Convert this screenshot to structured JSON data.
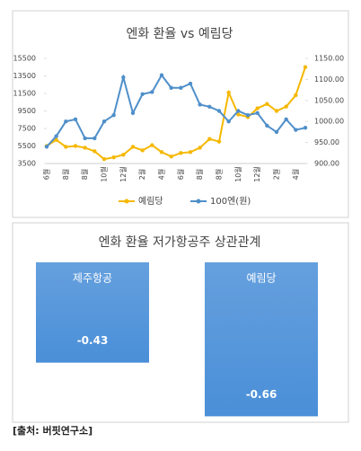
{
  "chart_data": [
    {
      "type": "line",
      "title": "엔화 환율 vs 예림당",
      "categories": [
        "6월",
        null,
        "8월",
        null,
        "8월",
        null,
        "10월",
        null,
        "12월",
        null,
        "2월",
        null,
        "4월",
        null,
        "6월",
        null,
        "8월",
        null,
        "8월",
        null,
        "10월",
        null,
        "12월",
        null,
        "2월",
        null,
        "4월",
        null
      ],
      "ylim": [
        3500,
        15500
      ],
      "yticks": [
        3500,
        5500,
        7500,
        9500,
        11500,
        13500,
        15500
      ],
      "y2lim": [
        900,
        1150
      ],
      "y2ticks": [
        {
          "value": 900,
          "label": "900.00"
        },
        {
          "value": 950,
          "label": "950.00"
        },
        {
          "value": 1000,
          "label": "1000.00"
        },
        {
          "value": 1050,
          "label": "1050.00"
        },
        {
          "value": 1100,
          "label": "1100.00"
        },
        {
          "value": 1150,
          "label": "1150.00"
        }
      ],
      "legend": "bottom",
      "series": [
        {
          "name": "예림당",
          "color": "#f5b800",
          "values": [
            5500,
            6200,
            5400,
            5500,
            5300,
            4900,
            4000,
            4200,
            4500,
            5400,
            5000,
            5600,
            4800,
            4300,
            4700,
            4800,
            5300,
            6300,
            6000,
            11600,
            9100,
            8800,
            9800,
            10300,
            9500,
            10000,
            11300,
            14500
          ]
        },
        {
          "name": "100엔(원)",
          "color": "#4f8fc9",
          "axis": "y2",
          "values": [
            940,
            965,
            1000,
            1005,
            960,
            960,
            1000,
            1015,
            1105,
            1020,
            1065,
            1070,
            1110,
            1080,
            1080,
            1090,
            1040,
            1035,
            1025,
            1000,
            1025,
            1015,
            1020,
            990,
            975,
            1005,
            980,
            985
          ]
        }
      ]
    },
    {
      "type": "bar",
      "title": "엔화 환율 저가항공주 상관관계",
      "categories": [
        "제주항공",
        "예림당"
      ],
      "values": [
        -0.43,
        -0.66
      ],
      "color": "#4a8fd8",
      "ylim": [
        -0.67,
        0
      ]
    }
  ],
  "source": "[출처: 버핏연구소]"
}
